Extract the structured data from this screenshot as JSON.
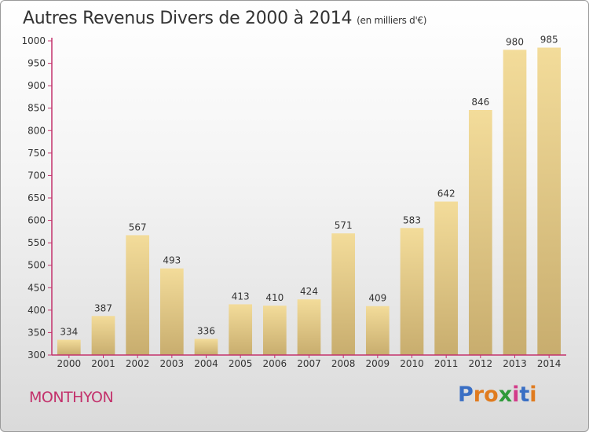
{
  "chart_data": {
    "type": "bar",
    "title": "Autres Revenus Divers de 2000 à 2014",
    "subtitle": "(en milliers d'€)",
    "categories": [
      "2000",
      "2001",
      "2002",
      "2003",
      "2004",
      "2005",
      "2006",
      "2007",
      "2008",
      "2009",
      "2010",
      "2011",
      "2012",
      "2013",
      "2014"
    ],
    "values": [
      334,
      387,
      567,
      493,
      336,
      413,
      410,
      424,
      571,
      409,
      583,
      642,
      846,
      980,
      985
    ],
    "ylim": [
      300,
      1000
    ],
    "yticks": [
      300,
      350,
      400,
      450,
      500,
      550,
      600,
      650,
      700,
      750,
      800,
      850,
      900,
      950,
      1000
    ],
    "grid": false,
    "colors": {
      "bar_top": "#f3dc9a",
      "bar_bottom": "#c8ad6e",
      "axis": "#c3326c"
    }
  },
  "footer": {
    "place": "MONTHYON",
    "logo_letters": [
      "P",
      "r",
      "o",
      "x",
      "i",
      "t",
      "i"
    ],
    "logo_colors": [
      "#3a6fc4",
      "#e07b1f",
      "#e07b1f",
      "#2f9a3a",
      "#d23c8a",
      "#3a6fc4",
      "#e07b1f"
    ]
  }
}
